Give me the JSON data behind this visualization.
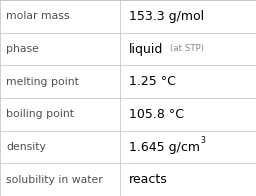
{
  "rows": [
    {
      "label": "molar mass",
      "value": "153.3 g/mol",
      "superscript": null,
      "extra": null
    },
    {
      "label": "phase",
      "value": "liquid",
      "superscript": null,
      "extra": "(at STP)"
    },
    {
      "label": "melting point",
      "value": "1.25 °C",
      "superscript": null,
      "extra": null
    },
    {
      "label": "boiling point",
      "value": "105.8 °C",
      "superscript": null,
      "extra": null
    },
    {
      "label": "density",
      "value": "1.645 g/cm",
      "superscript": "3",
      "extra": null
    },
    {
      "label": "solubility in water",
      "value": "reacts",
      "superscript": null,
      "extra": null
    }
  ],
  "bg_color": "#ffffff",
  "line_color": "#c8c8c8",
  "label_color": "#505050",
  "value_color": "#000000",
  "extra_color": "#888888",
  "label_fontsize": 7.8,
  "value_fontsize": 9.0,
  "extra_fontsize": 6.2,
  "super_fontsize": 5.5,
  "col_split": 0.47
}
